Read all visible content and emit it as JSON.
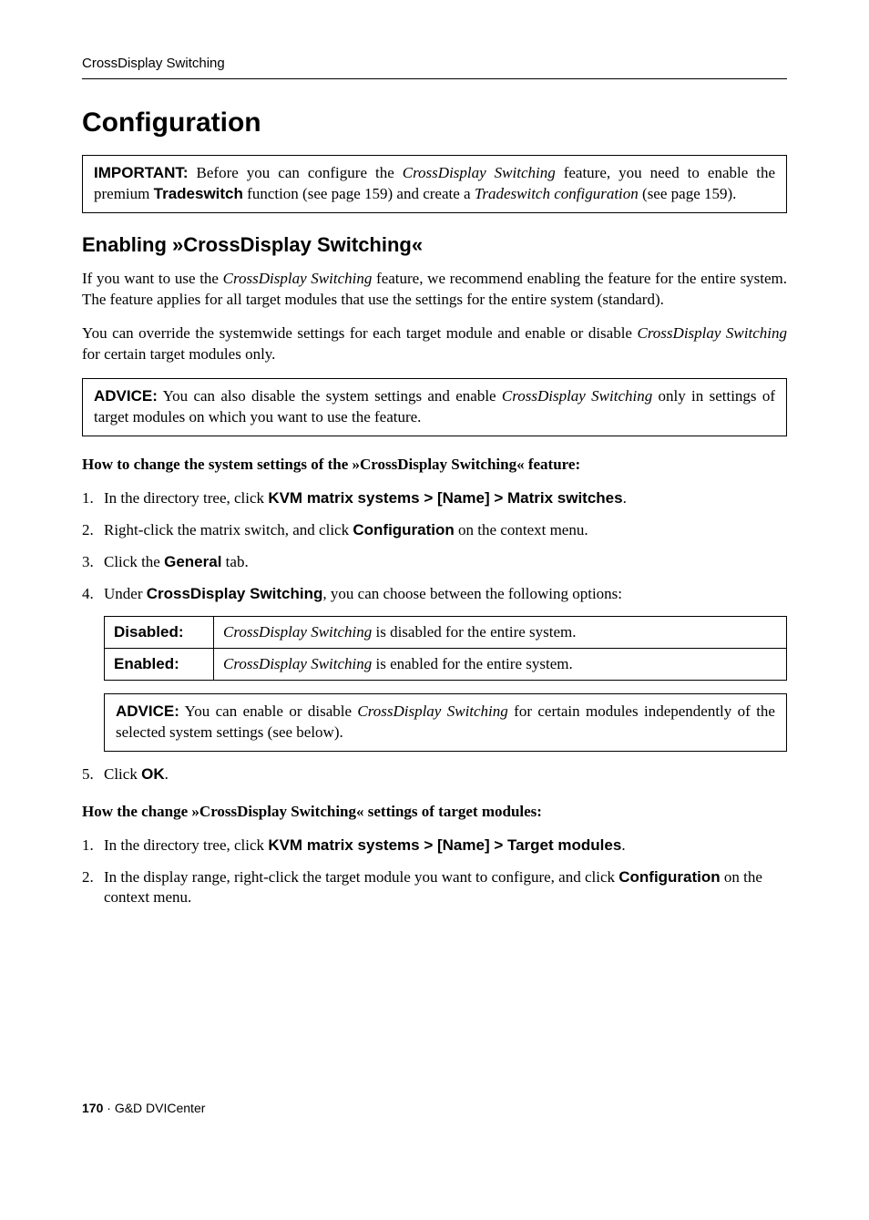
{
  "running_header": "CrossDisplay Switching",
  "chapter_title": "Configuration",
  "important_box": {
    "label": "IMPORTANT:",
    "t1": " Before you can configure the ",
    "i1": "CrossDisplay Switching",
    "t2": " feature, you need to enable the premium ",
    "b1": "Tradeswitch",
    "t3": " function (see page 159) and create a ",
    "i2": "Tradeswitch configuration",
    "t4": " (see page 159)."
  },
  "section_title": "Enabling »CrossDisplay Switching«",
  "para1": {
    "t1": "If you want to use the ",
    "i1": "CrossDisplay Switching",
    "t2": " feature, we recommend enabling the fea­ture for the entire system. The feature applies for all target modules that use the set­tings for the entire system (standard)."
  },
  "para2": {
    "t1": "You can override the systemwide settings for each target module and enable or disa­ble ",
    "i1": "CrossDisplay Switching",
    "t2": " for certain target modules only."
  },
  "advice_box1": {
    "label": "ADVICE:",
    "t1": " You can also disable the system settings and enable ",
    "i1": "CrossDisplay Switching",
    "t2": " only in settings of target modules on which you want to use the feature."
  },
  "howto1": "How to change the system settings of the »CrossDisplay Switching« feature:",
  "steps1": {
    "s1": {
      "t1": "In the directory tree, click ",
      "b1": "KVM matrix systems > [Name] > Matrix switches",
      "t2": "."
    },
    "s2": {
      "t1": "Right-click the matrix switch, and click ",
      "b1": "Configuration",
      "t2": " on the context menu."
    },
    "s3": {
      "t1": "Click the ",
      "b1": "General",
      "t2": " tab."
    },
    "s4": {
      "t1": "Under ",
      "b1": "CrossDisplay Switching",
      "t2": ", you can choose between the following options:"
    }
  },
  "opts_table": {
    "r1": {
      "label": "Disabled:",
      "i1": "CrossDisplay Switching",
      "t1": " is disabled for the entire system."
    },
    "r2": {
      "label": "Enabled:",
      "i1": "CrossDisplay Switching",
      "t1": " is enabled for the entire system."
    }
  },
  "advice_box2": {
    "label": "ADVICE:",
    "t1": " You can enable or disable ",
    "i1": "CrossDisplay Switching",
    "t2": " for certain modules independently of the selected system settings (see below)."
  },
  "steps1b": {
    "s5": {
      "t1": "Click ",
      "b1": "OK",
      "t2": "."
    }
  },
  "howto2": "How the change »CrossDisplay Switching« settings of target modules:",
  "steps2": {
    "s1": {
      "t1": "In the directory tree, click ",
      "b1": "KVM matrix systems > [Name] > Target modules",
      "t2": "."
    },
    "s2": {
      "t1": "In the display range, right-click the target module you want to configure, and click ",
      "b1": "Configuration",
      "t2": " on the context menu."
    }
  },
  "footer": {
    "page": "170",
    "sep": " · ",
    "product": "G&D DVICenter"
  }
}
